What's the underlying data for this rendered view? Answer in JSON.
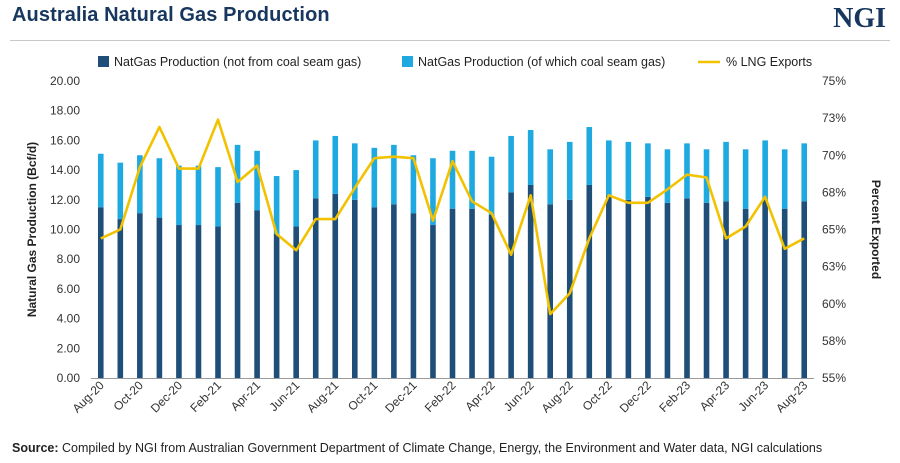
{
  "header": {
    "title": "Australia Natural Gas Production",
    "logo": "NGI"
  },
  "footer": {
    "source_label": "Source:",
    "source_text": "Compiled by NGI from Australian Government Department of Climate Change, Energy, the Environment and Water data, NGI calculations"
  },
  "colors": {
    "not_csg": "#1f4e79",
    "csg": "#1fa9e1",
    "lng": "#f2c200",
    "title": "#17375e"
  },
  "chart_data": {
    "type": "bar",
    "stacked": true,
    "title": "Australia Natural Gas Production",
    "ylabel": "Natural Gas Production (Bcf/d)",
    "y2label": "Percent Exported",
    "ylim": [
      0,
      20
    ],
    "y2lim": [
      55,
      75
    ],
    "y_ticks": [
      "0.00",
      "2.00",
      "4.00",
      "6.00",
      "8.00",
      "10.00",
      "12.00",
      "14.00",
      "16.00",
      "18.00",
      "20.00"
    ],
    "y2_ticks": [
      "55%",
      "58%",
      "60%",
      "63%",
      "65%",
      "68%",
      "70%",
      "73%",
      "75%"
    ],
    "legend_position": "top",
    "x": [
      "Aug-20",
      "Sep-20",
      "Oct-20",
      "Nov-20",
      "Dec-20",
      "Jan-21",
      "Feb-21",
      "Mar-21",
      "Apr-21",
      "May-21",
      "Jun-21",
      "Jul-21",
      "Aug-21",
      "Sep-21",
      "Oct-21",
      "Nov-21",
      "Dec-21",
      "Jan-22",
      "Feb-22",
      "Mar-22",
      "Apr-22",
      "May-22",
      "Jun-22",
      "Jul-22",
      "Aug-22",
      "Sep-22",
      "Oct-22",
      "Nov-22",
      "Dec-22",
      "Jan-23",
      "Feb-23",
      "Mar-23",
      "Apr-23",
      "May-23",
      "Jun-23",
      "Jul-23",
      "Aug-23"
    ],
    "x_tick_labels": [
      "Aug-20",
      "Oct-20",
      "Dec-20",
      "Feb-21",
      "Apr-21",
      "Jun-21",
      "Aug-21",
      "Oct-21",
      "Dec-21",
      "Feb-22",
      "Apr-22",
      "Jun-22",
      "Aug-22",
      "Oct-22",
      "Dec-22",
      "Feb-23",
      "Apr-23",
      "Jun-23",
      "Aug-23"
    ],
    "series": [
      {
        "name": "NatGas Production (not from coal seam gas)",
        "axis": "left",
        "values": [
          11.5,
          10.7,
          11.1,
          10.8,
          10.3,
          10.3,
          10.2,
          11.8,
          11.3,
          9.7,
          10.2,
          12.1,
          12.4,
          12.0,
          11.5,
          11.7,
          11.1,
          10.3,
          11.4,
          11.4,
          11.0,
          12.5,
          13.0,
          11.7,
          12.0,
          13.0,
          12.3,
          12.0,
          12.2,
          11.8,
          12.1,
          11.8,
          11.9,
          11.4,
          12.0,
          11.4,
          11.9
        ]
      },
      {
        "name": "NatGas Production (of which coal seam gas)",
        "axis": "left",
        "values": [
          3.6,
          3.8,
          3.9,
          4.0,
          4.0,
          4.0,
          4.0,
          3.9,
          4.0,
          3.9,
          3.8,
          3.9,
          3.9,
          3.8,
          4.0,
          4.0,
          3.9,
          4.5,
          3.9,
          3.9,
          3.9,
          3.8,
          3.7,
          3.7,
          3.9,
          3.9,
          3.7,
          3.9,
          3.6,
          3.6,
          3.7,
          3.6,
          4.0,
          4.0,
          4.0,
          4.0,
          3.9
        ]
      },
      {
        "name": "% LNG Exports",
        "axis": "right",
        "type": "line",
        "values": [
          64.4,
          65.0,
          69.2,
          71.9,
          69.1,
          69.1,
          72.4,
          68.2,
          69.3,
          64.7,
          63.6,
          65.7,
          65.7,
          67.8,
          69.8,
          69.9,
          69.8,
          65.6,
          69.6,
          66.9,
          66.1,
          63.3,
          67.3,
          59.3,
          60.7,
          64.4,
          67.3,
          66.8,
          66.8,
          67.7,
          68.7,
          68.5,
          64.4,
          65.2,
          67.2,
          63.7,
          64.4
        ]
      }
    ]
  }
}
